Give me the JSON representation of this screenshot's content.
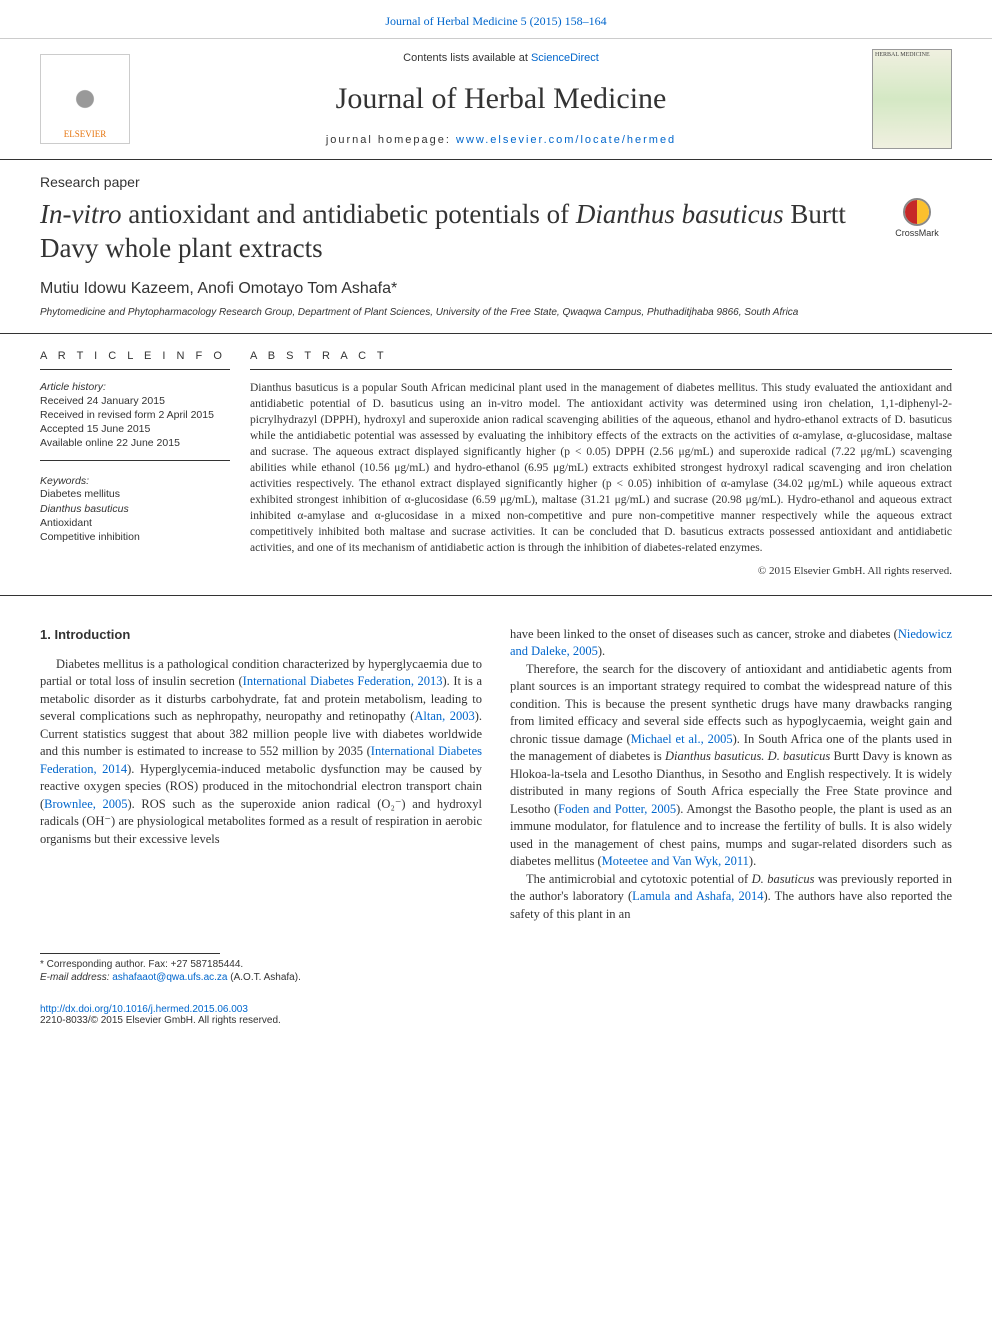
{
  "top_header_link": "Journal of Herbal Medicine 5 (2015) 158–164",
  "publisher_bar": {
    "elsevier_label": "ELSEVIER",
    "contents_text": "Contents lists available at ",
    "contents_link": "ScienceDirect",
    "journal_name": "Journal of Herbal Medicine",
    "homepage_label": "journal homepage: ",
    "homepage_link": "www.elsevier.com/locate/hermed",
    "cover_text": "HERBAL MEDICINE"
  },
  "article_type": "Research paper",
  "title": {
    "part1_italic": "In-vitro",
    "part2": " antioxidant and antidiabetic potentials of ",
    "part3_italic": "Dianthus basuticus",
    "part4": " Burtt Davy whole plant extracts"
  },
  "crossmark_label": "CrossMark",
  "authors": "Mutiu Idowu Kazeem, Anofi Omotayo Tom Ashafa*",
  "affiliation": "Phytomedicine and Phytopharmacology Research Group, Department of Plant Sciences, University of the Free State, Qwaqwa Campus, Phuthaditjhaba 9866, South Africa",
  "info": {
    "heading": "A R T I C L E    I N F O",
    "history_label": "Article history:",
    "received": "Received 24 January 2015",
    "revised": "Received in revised form 2 April 2015",
    "accepted": "Accepted 15 June 2015",
    "online": "Available online 22 June 2015",
    "keywords_label": "Keywords:",
    "kw1": "Diabetes mellitus",
    "kw2_italic": "Dianthus basuticus",
    "kw3": "Antioxidant",
    "kw4": "Competitive inhibition"
  },
  "abstract": {
    "heading": "A B S T R A C T",
    "text": "Dianthus basuticus is a popular South African medicinal plant used in the management of diabetes mellitus. This study evaluated the antioxidant and antidiabetic potential of D. basuticus using an in-vitro model. The antioxidant activity was determined using iron chelation, 1,1-diphenyl-2-picrylhydrazyl (DPPH), hydroxyl and superoxide anion radical scavenging abilities of the aqueous, ethanol and hydro-ethanol extracts of D. basuticus while the antidiabetic potential was assessed by evaluating the inhibitory effects of the extracts on the activities of α-amylase, α-glucosidase, maltase and sucrase. The aqueous extract displayed significantly higher (p < 0.05) DPPH (2.56 μg/mL) and superoxide radical (7.22 μg/mL) scavenging abilities while ethanol (10.56 μg/mL) and hydro-ethanol (6.95 μg/mL) extracts exhibited strongest hydroxyl radical scavenging and iron chelation activities respectively. The ethanol extract displayed significantly higher (p < 0.05) inhibition of α-amylase (34.02 μg/mL) while aqueous extract exhibited strongest inhibition of α-glucosidase (6.59 μg/mL), maltase (31.21 μg/mL) and sucrase (20.98 μg/mL). Hydro-ethanol and aqueous extract inhibited α-amylase and α-glucosidase in a mixed non-competitive and pure non-competitive manner respectively while the aqueous extract competitively inhibited both maltase and sucrase activities. It can be concluded that D. basuticus extracts possessed antioxidant and antidiabetic activities, and one of its mechanism of antidiabetic action is through the inhibition of diabetes-related enzymes.",
    "copyright": "© 2015 Elsevier GmbH. All rights reserved."
  },
  "body": {
    "heading1": "1. Introduction",
    "col1_p1a": "Diabetes mellitus is a pathological condition characterized by hyperglycaemia due to partial or total loss of insulin secretion (",
    "col1_c1": "International Diabetes Federation, 2013",
    "col1_p1b": "). It is a metabolic disorder as it disturbs carbohydrate, fat and protein metabolism, leading to several complications such as nephropathy, neuropathy and retinopathy (",
    "col1_c2": "Altan, 2003",
    "col1_p1c": "). Current statistics suggest that about 382 million people live with diabetes worldwide and this number is estimated to increase to 552 million by 2035 (",
    "col1_c3": "International Diabetes Federation, 2014",
    "col1_p1d": "). Hyperglycemia-induced metabolic dysfunction may be caused by reactive oxygen species (ROS) produced in the mitochondrial electron transport chain (",
    "col1_c4": "Brownlee, 2005",
    "col1_p1e": "). ROS such as the superoxide anion radical (O₂⁻) and hydroxyl radicals (OH⁻) are physiological metabolites formed as a result of respiration in aerobic organisms but their excessive levels",
    "col2_p1a": "have been linked to the onset of diseases such as cancer, stroke and diabetes (",
    "col2_c1": "Niedowicz and Daleke, 2005",
    "col2_p1b": ").",
    "col2_p2a": "Therefore, the search for the discovery of antioxidant and antidiabetic agents from plant sources is an important strategy required to combat the widespread nature of this condition. This is because the present synthetic drugs have many drawbacks ranging from limited efficacy and several side effects such as hypoglycaemia, weight gain and chronic tissue damage (",
    "col2_c2": "Michael et al., 2005",
    "col2_p2b": "). In South Africa one of the plants used in the management of diabetes is ",
    "col2_i1": "Dianthus basuticus. D. basuticus",
    "col2_p2c": " Burtt Davy is known as Hlokoa-la-tsela and Lesotho Dianthus, in Sesotho and English respectively. It is widely distributed in many regions of South Africa especially the Free State province and Lesotho (",
    "col2_c3": "Foden and Potter, 2005",
    "col2_p2d": "). Amongst the Basotho people, the plant is used as an immune modulator, for flatulence and to increase the fertility of bulls. It is also widely used in the management of chest pains, mumps and sugar-related disorders such as diabetes mellitus (",
    "col2_c4": "Moteetee and Van Wyk, 2011",
    "col2_p2e": ").",
    "col2_p3a": "The antimicrobial and cytotoxic potential of ",
    "col2_i2": "D. basuticus",
    "col2_p3b": " was previously reported in the author's laboratory (",
    "col2_c5": "Lamula and Ashafa, 2014",
    "col2_p3c": "). The authors have also reported the safety of this plant in an"
  },
  "footnotes": {
    "corr": "* Corresponding author. Fax: +27 587185444.",
    "email_label": "E-mail address: ",
    "email": "ashafaaot@qwa.ufs.ac.za",
    "email_who": " (A.O.T. Ashafa)."
  },
  "bottom": {
    "doi": "http://dx.doi.org/10.1016/j.hermed.2015.06.003",
    "issn_copy": "2210-8033/© 2015 Elsevier GmbH. All rights reserved."
  },
  "colors": {
    "link": "#0066cc",
    "text": "#333333",
    "elsevier_orange": "#e6750f"
  }
}
